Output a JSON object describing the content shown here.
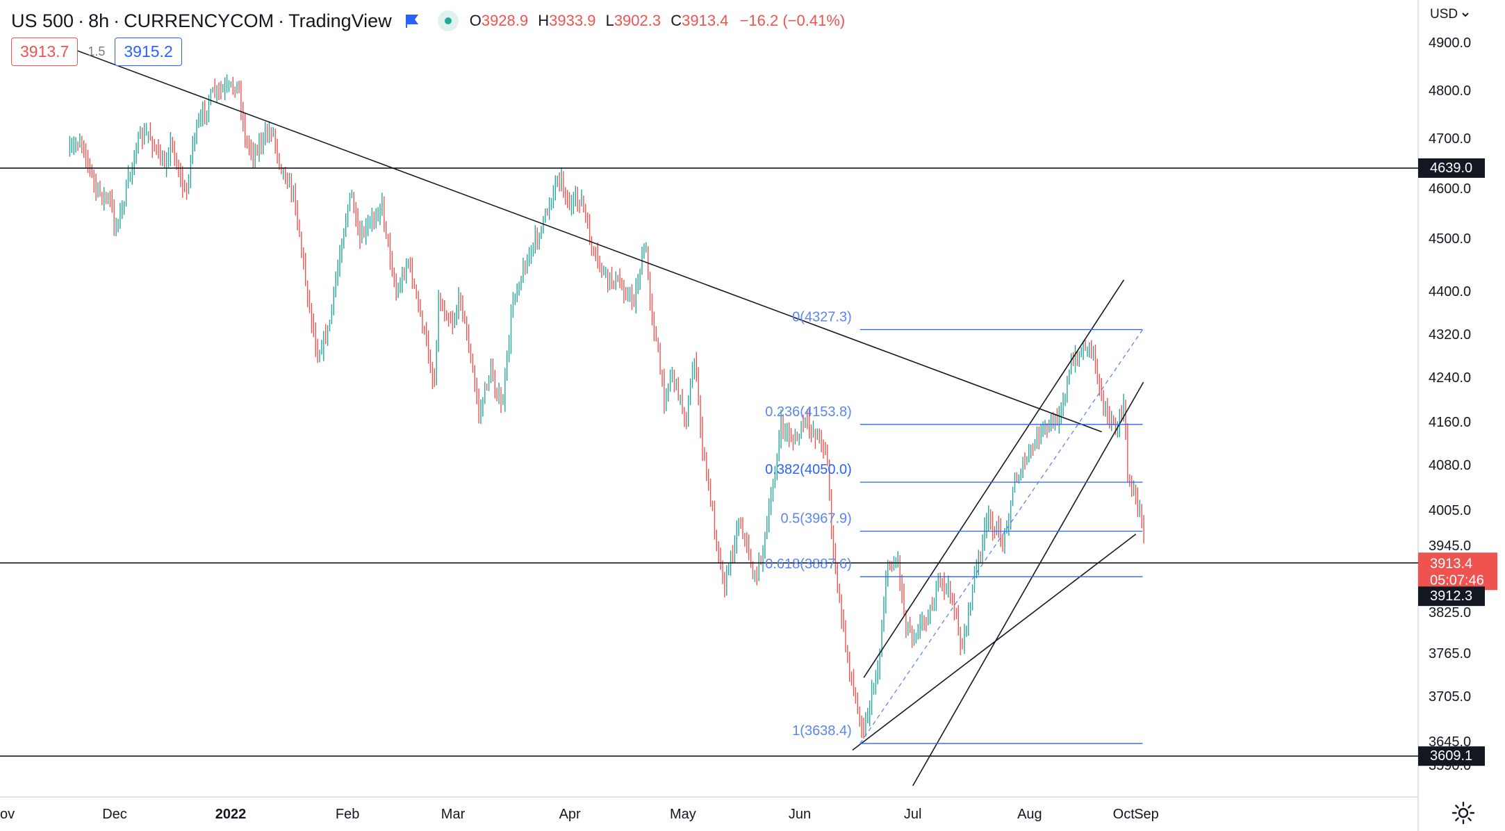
{
  "header": {
    "symbol": "US 500",
    "interval": "8h",
    "exchange": "CURRENCYCOM",
    "platform": "TradingView",
    "ohlc": {
      "o_label": "O",
      "o": "3928.9",
      "h_label": "H",
      "h": "3933.9",
      "l_label": "L",
      "l": "3902.3",
      "c_label": "C",
      "c": "3913.4",
      "change": "−16.2 (−0.41%)"
    }
  },
  "trade": {
    "sell": "3913.7",
    "spread": "1.5",
    "buy": "3915.2"
  },
  "price_scale": {
    "currency": "USD",
    "ticks": [
      "4900.0",
      "4800.0",
      "4700.0",
      "4600.0",
      "4500.0",
      "4400.0",
      "4320.0",
      "4240.0",
      "4160.0",
      "4080.0",
      "4005.0",
      "3945.0",
      "3825.0",
      "3765.0",
      "3705.0",
      "3645.0",
      "3590.0"
    ],
    "labels": [
      {
        "text": "4639.0",
        "color": "#131722"
      },
      {
        "text": "3913.4",
        "color": "#ef5350"
      },
      {
        "text": "05:07:46",
        "color": "#ef5350"
      },
      {
        "text": "3912.3",
        "color": "#131722"
      },
      {
        "text": "3609.1",
        "color": "#131722"
      }
    ]
  },
  "time_scale": [
    "Dec",
    "2022",
    "Feb",
    "Mar",
    "Apr",
    "May",
    "Jun",
    "Jul",
    "Aug",
    "Sep",
    "Oct",
    "Nov"
  ],
  "fib_levels": [
    {
      "label": "0(4327.3)",
      "price": 4327.3
    },
    {
      "label": "0.236(4153.8)",
      "price": 4153.8
    },
    {
      "label": "0.382(4050.0)",
      "price": 4050.0
    },
    {
      "label": "0.5(3967.9)",
      "price": 3967.9
    },
    {
      "label": "0.618(3887.6)",
      "price": 3887.6
    },
    {
      "label": "1(3638.4)",
      "price": 3638.4
    }
  ],
  "horizontal_lines": [
    4639.0,
    3912.3,
    3609.1
  ],
  "colors": {
    "up": "#26a69a",
    "down": "#ef5350",
    "fib": "#2962ff",
    "fib_text": "#5b86f0",
    "line": "#131722",
    "grid_text": "#131722",
    "border": "#e0e3eb"
  },
  "icons": {
    "flag": "flag-icon",
    "live": "live-dot-icon",
    "settings": "gear-icon",
    "currency_menu": "chevron-down-icon"
  },
  "chart_data": {
    "type": "candlestick",
    "y_ticks": [
      4900,
      4800,
      4700,
      4600,
      4500,
      4400,
      4320,
      4240,
      4160,
      4080,
      4005,
      3945,
      3825,
      3765,
      3705,
      3645,
      3590
    ],
    "x_ticks": [
      "Dec",
      "2022",
      "Feb",
      "Mar",
      "Apr",
      "May",
      "Jun",
      "Jul",
      "Aug",
      "Sep",
      "Oct",
      "Nov"
    ],
    "keypoints": [
      [
        "Nov 19",
        4670
      ],
      [
        "Nov 22",
        4700
      ],
      [
        "Nov 26",
        4595
      ],
      [
        "Nov 30",
        4570
      ],
      [
        "Dec 1",
        4520
      ],
      [
        "Dec 3",
        4560
      ],
      [
        "Dec 7",
        4690
      ],
      [
        "Dec 10",
        4710
      ],
      [
        "Dec 14",
        4640
      ],
      [
        "Dec 16",
        4690
      ],
      [
        "Dec 20",
        4580
      ],
      [
        "Dec 22",
        4700
      ],
      [
        "Dec 27",
        4790
      ],
      [
        "Dec 29",
        4795
      ],
      [
        "Jan 3",
        4810
      ],
      [
        "Jan 5",
        4690
      ],
      [
        "Jan 7",
        4670
      ],
      [
        "Jan 12",
        4720
      ],
      [
        "Jan 14",
        4650
      ],
      [
        "Jan 18",
        4580
      ],
      [
        "Jan 21",
        4410
      ],
      [
        "Jan 24",
        4280
      ],
      [
        "Jan 27",
        4330
      ],
      [
        "Jan 31",
        4520
      ],
      [
        "Feb 2",
        4590
      ],
      [
        "Feb 4",
        4490
      ],
      [
        "Feb 8",
        4540
      ],
      [
        "Feb 10",
        4570
      ],
      [
        "Feb 14",
        4390
      ],
      [
        "Feb 17",
        4460
      ],
      [
        "Feb 22",
        4300
      ],
      [
        "Feb 24",
        4220
      ],
      [
        "Feb 25",
        4380
      ],
      [
        "Mar 1",
        4340
      ],
      [
        "Mar 3",
        4390
      ],
      [
        "Mar 8",
        4170
      ],
      [
        "Mar 10",
        4230
      ],
      [
        "Mar 11",
        4250
      ],
      [
        "Mar 14",
        4180
      ],
      [
        "Mar 17",
        4390
      ],
      [
        "Mar 22",
        4480
      ],
      [
        "Mar 25",
        4530
      ],
      [
        "Mar 29",
        4630
      ],
      [
        "Apr 1",
        4560
      ],
      [
        "Apr 4",
        4580
      ],
      [
        "Apr 7",
        4470
      ],
      [
        "Apr 11",
        4420
      ],
      [
        "Apr 13",
        4420
      ],
      [
        "Apr 18",
        4380
      ],
      [
        "Apr 21",
        4490
      ],
      [
        "Apr 22",
        4400
      ],
      [
        "Apr 26",
        4200
      ],
      [
        "Apr 28",
        4250
      ],
      [
        "May 2",
        4160
      ],
      [
        "May 4",
        4280
      ],
      [
        "May 6",
        4120
      ],
      [
        "May 10",
        3950
      ],
      [
        "May 12",
        3870
      ],
      [
        "May 16",
        3990
      ],
      [
        "May 18",
        3940
      ],
      [
        "May 20",
        3880
      ],
      [
        "May 23",
        3960
      ],
      [
        "May 27",
        4150
      ],
      [
        "May 31",
        4120
      ],
      [
        "Jun 2",
        4160
      ],
      [
        "Jun 6",
        4130
      ],
      [
        "Jun 8",
        4110
      ],
      [
        "Jun 10",
        3920
      ],
      [
        "Jun 13",
        3780
      ],
      [
        "Jun 16",
        3690
      ],
      [
        "Jun 18",
        3660
      ],
      [
        "Jun 22",
        3750
      ],
      [
        "Jun 24",
        3900
      ],
      [
        "Jun 27",
        3920
      ],
      [
        "Jun 29",
        3810
      ],
      [
        "Jul 1",
        3790
      ],
      [
        "Jul 6",
        3830
      ],
      [
        "Jul 8",
        3880
      ],
      [
        "Jul 11",
        3860
      ],
      [
        "Jul 14",
        3770
      ],
      [
        "Jul 18",
        3910
      ],
      [
        "Jul 21",
        3990
      ],
      [
        "Jul 25",
        3950
      ],
      [
        "Jul 28",
        4050
      ],
      [
        "Aug 1",
        4100
      ],
      [
        "Aug 4",
        4140
      ],
      [
        "Aug 8",
        4160
      ],
      [
        "Aug 10",
        4200
      ],
      [
        "Aug 12",
        4260
      ],
      [
        "Aug 16",
        4300
      ],
      [
        "Aug 18",
        4290
      ],
      [
        "Aug 19",
        4240
      ],
      [
        "Aug 22",
        4160
      ],
      [
        "Aug 24",
        4140
      ],
      [
        "Aug 26",
        4190
      ],
      [
        "Aug 27",
        4060
      ],
      [
        "Aug 30",
        4010
      ],
      [
        "Sep 1",
        3940
      ],
      [
        "Sep 2",
        3913.4
      ]
    ],
    "channel_lines": [
      {
        "name": "",
        "from": [
          "Nov 18",
          4890
        ],
        "to": [
          "Oct 30",
          4140
        ]
      },
      {
        "name": "",
        "from": [
          "Jun 18",
          3730
        ],
        "to": [
          "Aug 26",
          4420
        ]
      },
      {
        "name": "",
        "from": [
          "Jul 1",
          3540
        ],
        "to": [
          "Sep 5",
          4230
        ]
      },
      {
        "name": "",
        "from": [
          "Jun 15",
          3623
        ],
        "to": [
          "Sep 15",
          3963
        ]
      }
    ],
    "last_price": 3913.4
  }
}
